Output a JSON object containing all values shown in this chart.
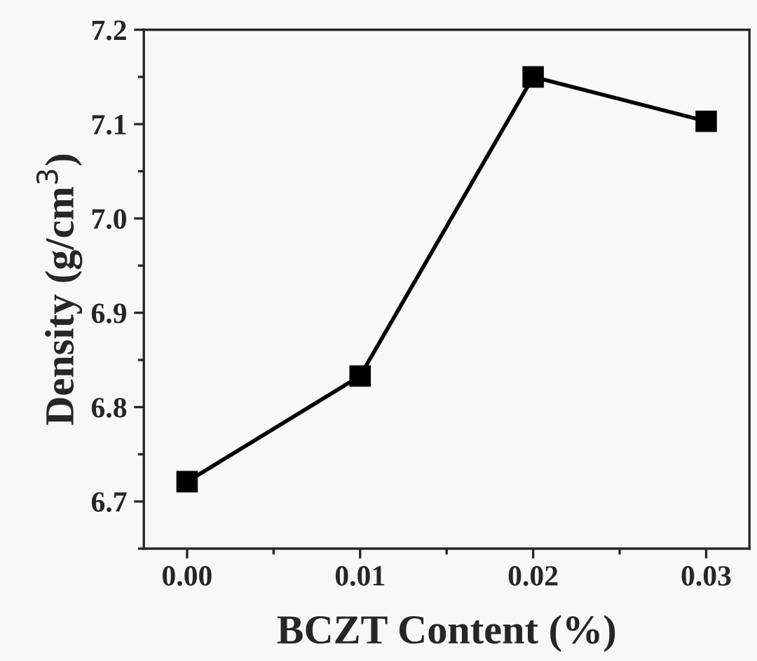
{
  "chart_data": {
    "type": "line",
    "xlabel": "BCZT Content (%)",
    "ylabel": "Density (g/cm$^{3}$)",
    "x": [
      0.0,
      0.01,
      0.02,
      0.03
    ],
    "series": [
      {
        "color": "#000000",
        "values": [
          6.721,
          6.833,
          7.15,
          7.103
        ]
      }
    ],
    "marker": "square",
    "line_style": "solid",
    "xlim": [
      -0.0025,
      0.0325
    ],
    "xticks": [
      {
        "value": 0.0,
        "label": "0.00"
      },
      0.01,
      0.02,
      0.03
    ],
    "ylim": [
      6.65,
      7.2
    ],
    "yticks": [
      6.7,
      6.8,
      6.9,
      {
        "value": 7.0,
        "label": "7.0"
      },
      7.1,
      7.2
    ],
    "grid": false
  }
}
